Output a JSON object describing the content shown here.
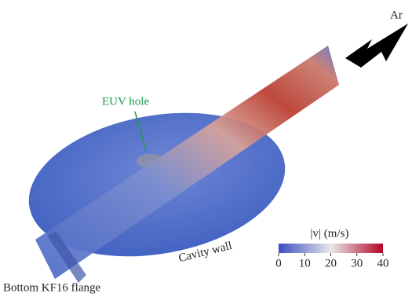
{
  "labels": {
    "gas": "Ar",
    "euv_hole": "EUV hole",
    "cavity_wall": "Cavity wall",
    "bottom_flange": "Bottom KF16 flange"
  },
  "colorbar": {
    "title": "|v| (m/s)",
    "lim": [
      0,
      40
    ],
    "ticks": [
      0,
      10,
      20,
      30,
      40
    ]
  }
}
